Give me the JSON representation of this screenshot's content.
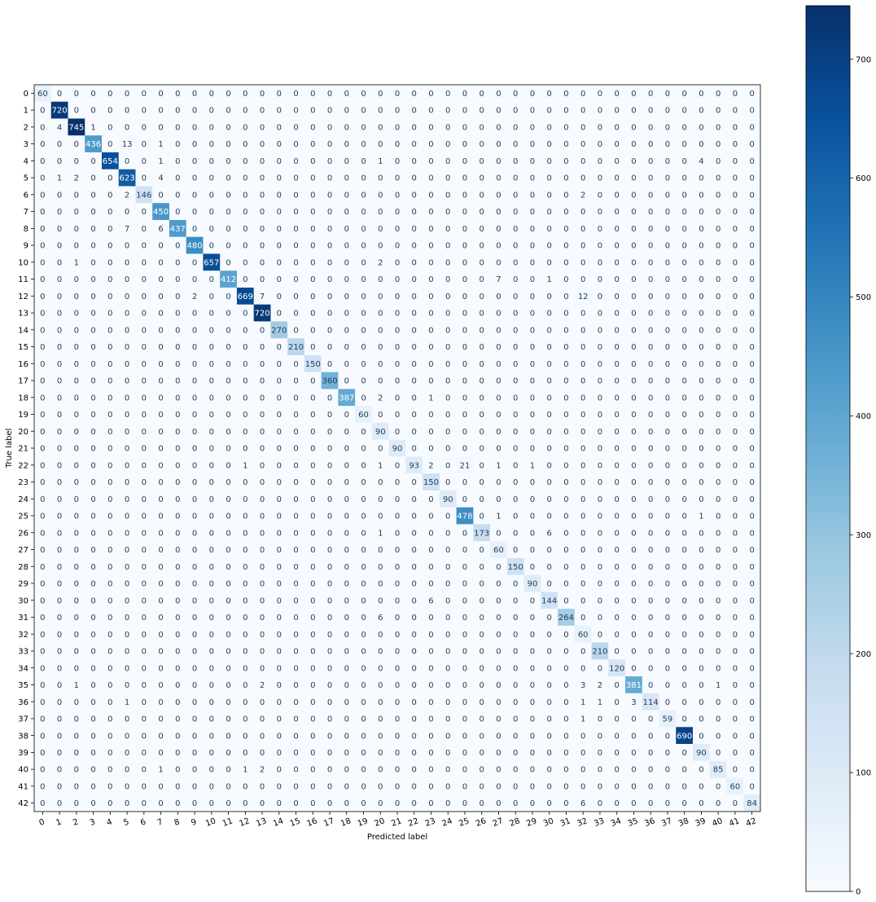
{
  "chart_data": {
    "type": "heatmap",
    "title": "",
    "xlabel": "Predicted label",
    "ylabel": "True label",
    "x_categories": [
      "0",
      "1",
      "2",
      "3",
      "4",
      "5",
      "6",
      "7",
      "8",
      "9",
      "10",
      "11",
      "12",
      "13",
      "14",
      "15",
      "16",
      "17",
      "18",
      "19",
      "20",
      "21",
      "22",
      "23",
      "24",
      "25",
      "26",
      "27",
      "28",
      "29",
      "30",
      "31",
      "32",
      "33",
      "34",
      "35",
      "36",
      "37",
      "38",
      "39",
      "40",
      "41",
      "42"
    ],
    "y_categories": [
      "0",
      "1",
      "2",
      "3",
      "4",
      "5",
      "6",
      "7",
      "8",
      "9",
      "10",
      "11",
      "12",
      "13",
      "14",
      "15",
      "16",
      "17",
      "18",
      "19",
      "20",
      "21",
      "22",
      "23",
      "24",
      "25",
      "26",
      "27",
      "28",
      "29",
      "30",
      "31",
      "32",
      "33",
      "34",
      "35",
      "36",
      "37",
      "38",
      "39",
      "40",
      "41",
      "42"
    ],
    "colormap": "Blues",
    "color_low": "#f7fbff",
    "color_high": "#08306b",
    "vmin": 0,
    "vmax": 745,
    "colorbar_ticks": [
      0,
      100,
      200,
      300,
      400,
      500,
      600,
      700
    ],
    "x_tick_rotation": "slanted",
    "nonzero_cells": [
      [
        0,
        0,
        60
      ],
      [
        1,
        1,
        720
      ],
      [
        2,
        1,
        4
      ],
      [
        2,
        2,
        745
      ],
      [
        2,
        3,
        1
      ],
      [
        3,
        3,
        436
      ],
      [
        3,
        5,
        13
      ],
      [
        3,
        7,
        1
      ],
      [
        4,
        4,
        654
      ],
      [
        4,
        7,
        1
      ],
      [
        4,
        20,
        1
      ],
      [
        4,
        39,
        4
      ],
      [
        5,
        1,
        1
      ],
      [
        5,
        2,
        2
      ],
      [
        5,
        5,
        623
      ],
      [
        5,
        7,
        4
      ],
      [
        6,
        5,
        2
      ],
      [
        6,
        6,
        146
      ],
      [
        6,
        32,
        2
      ],
      [
        7,
        7,
        450
      ],
      [
        8,
        5,
        7
      ],
      [
        8,
        7,
        6
      ],
      [
        8,
        8,
        437
      ],
      [
        9,
        9,
        480
      ],
      [
        10,
        2,
        1
      ],
      [
        10,
        10,
        657
      ],
      [
        10,
        20,
        2
      ],
      [
        11,
        11,
        412
      ],
      [
        11,
        27,
        7
      ],
      [
        11,
        30,
        1
      ],
      [
        12,
        9,
        2
      ],
      [
        12,
        12,
        669
      ],
      [
        12,
        13,
        7
      ],
      [
        12,
        32,
        12
      ],
      [
        13,
        13,
        720
      ],
      [
        14,
        14,
        270
      ],
      [
        15,
        15,
        210
      ],
      [
        16,
        16,
        150
      ],
      [
        17,
        17,
        360
      ],
      [
        18,
        18,
        387
      ],
      [
        18,
        20,
        2
      ],
      [
        18,
        23,
        1
      ],
      [
        19,
        19,
        60
      ],
      [
        20,
        20,
        90
      ],
      [
        21,
        21,
        90
      ],
      [
        22,
        12,
        1
      ],
      [
        22,
        20,
        1
      ],
      [
        22,
        22,
        93
      ],
      [
        22,
        23,
        2
      ],
      [
        22,
        25,
        21
      ],
      [
        22,
        27,
        1
      ],
      [
        22,
        29,
        1
      ],
      [
        23,
        23,
        150
      ],
      [
        24,
        24,
        90
      ],
      [
        25,
        25,
        478
      ],
      [
        25,
        27,
        1
      ],
      [
        25,
        39,
        1
      ],
      [
        26,
        20,
        1
      ],
      [
        26,
        26,
        173
      ],
      [
        26,
        30,
        6
      ],
      [
        27,
        27,
        60
      ],
      [
        28,
        28,
        150
      ],
      [
        29,
        29,
        90
      ],
      [
        30,
        23,
        6
      ],
      [
        30,
        30,
        144
      ],
      [
        31,
        20,
        6
      ],
      [
        31,
        31,
        264
      ],
      [
        32,
        32,
        60
      ],
      [
        33,
        33,
        210
      ],
      [
        34,
        34,
        120
      ],
      [
        35,
        2,
        1
      ],
      [
        35,
        13,
        2
      ],
      [
        35,
        32,
        3
      ],
      [
        35,
        33,
        2
      ],
      [
        35,
        35,
        381
      ],
      [
        35,
        40,
        1
      ],
      [
        36,
        5,
        1
      ],
      [
        36,
        32,
        1
      ],
      [
        36,
        33,
        1
      ],
      [
        36,
        35,
        3
      ],
      [
        36,
        36,
        114
      ],
      [
        37,
        32,
        1
      ],
      [
        37,
        37,
        59
      ],
      [
        38,
        38,
        690
      ],
      [
        39,
        39,
        90
      ],
      [
        40,
        7,
        1
      ],
      [
        40,
        12,
        1
      ],
      [
        40,
        13,
        2
      ],
      [
        40,
        40,
        85
      ],
      [
        41,
        41,
        60
      ],
      [
        42,
        32,
        6
      ],
      [
        42,
        42,
        84
      ]
    ]
  }
}
